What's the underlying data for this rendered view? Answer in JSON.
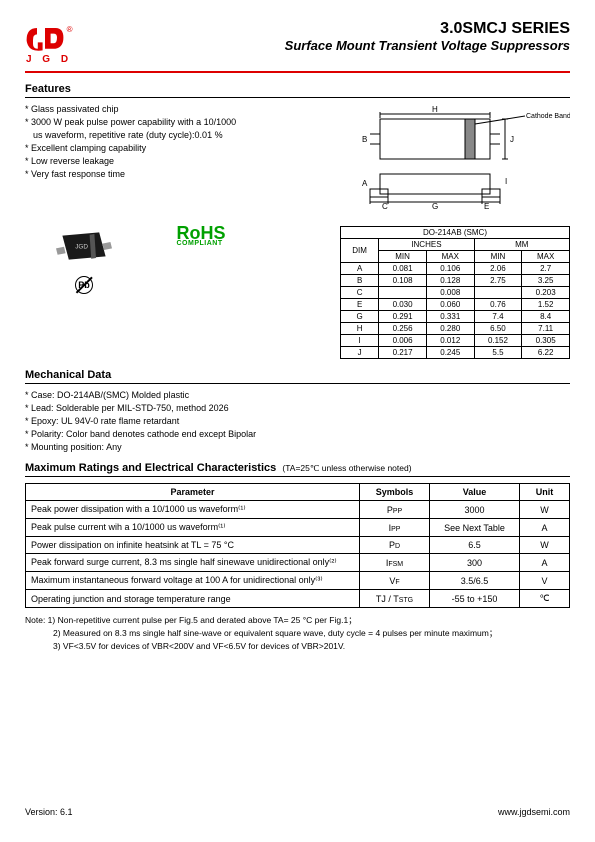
{
  "logo_text": "J G D",
  "title": "3.0SMCJ SERIES",
  "subtitle": "Surface Mount Transient Voltage Suppressors",
  "features_hdr": "Features",
  "features": [
    "Glass passivated chip",
    "3000 W peak pulse power capability with a 10/1000",
    "   us waveform, repetitive rate (duty cycle):0.01 %",
    "Excellent clamping capability",
    "Low reverse leakage",
    "Very fast response time"
  ],
  "rohs": "RoHS",
  "rohs_sub": "COMPLIANT",
  "pb": "Pb",
  "cathode_label": "Cathode Band",
  "dim_hdr": "DO-214AB (SMC)",
  "dim_cols": [
    "DIM",
    "INCHES",
    "MM"
  ],
  "dim_subcols": [
    "MIN",
    "MAX",
    "MIN",
    "MAX"
  ],
  "dim_rows": [
    [
      "A",
      "0.081",
      "0.106",
      "2.06",
      "2.7"
    ],
    [
      "B",
      "0.108",
      "0.128",
      "2.75",
      "3.25"
    ],
    [
      "C",
      "",
      "0.008",
      "",
      "0.203"
    ],
    [
      "E",
      "0.030",
      "0.060",
      "0.76",
      "1.52"
    ],
    [
      "G",
      "0.291",
      "0.331",
      "7.4",
      "8.4"
    ],
    [
      "H",
      "0.256",
      "0.280",
      "6.50",
      "7.11"
    ],
    [
      "I",
      "0.006",
      "0.012",
      "0.152",
      "0.305"
    ],
    [
      "J",
      "0.217",
      "0.245",
      "5.5",
      "6.22"
    ]
  ],
  "mech_hdr": "Mechanical Data",
  "mech": [
    "Case: DO-214AB/(SMC) Molded plastic",
    "Lead: Solderable per MIL-STD-750, method 2026",
    "Epoxy: UL 94V-0 rate flame retardant",
    "Polarity: Color band denotes cathode end except Bipolar",
    "Mounting position: Any"
  ],
  "ratings_hdr": "Maximum Ratings and Electrical Characteristics",
  "ratings_note": "(TA=25℃ unless otherwise noted)",
  "ratings_cols": [
    "Parameter",
    "Symbols",
    "Value",
    "Unit"
  ],
  "ratings_rows": [
    {
      "p": "Peak power dissipation with a 10/1000 us waveform⁽¹⁾",
      "s": "P",
      "ss": "PP",
      "v": "3000",
      "u": "W"
    },
    {
      "p": "Peak pulse current wih a 10/1000 us waveform⁽¹⁾",
      "s": "I",
      "ss": "PP",
      "v": "See Next Table",
      "u": "A"
    },
    {
      "p": "Power dissipation on infinite heatsink at TL = 75 °C",
      "s": "P",
      "ss": "D",
      "v": "6.5",
      "u": "W"
    },
    {
      "p": "Peak forward surge current, 8.3 ms single half sinewave unidirectional only⁽²⁾",
      "s": "I",
      "ss": "FSM",
      "v": "300",
      "u": "A"
    },
    {
      "p": "Maximum instantaneous forward voltage at 100 A for unidirectional only⁽³⁾",
      "s": "V",
      "ss": "F",
      "v": "3.5/6.5",
      "u": "V"
    },
    {
      "p": "Operating junction and storage temperature range",
      "s": "TJ / T",
      "ss": "STG",
      "v": "-55 to +150",
      "u": "℃"
    }
  ],
  "notes_lead": "Note: 1) Non-repetitive current pulse per Fig.5 and derated above TA= 25 °C per Fig.1；",
  "notes_2": "2) Measured on 8.3 ms single half sine-wave or equivalent square wave, duty cycle = 4 pulses per minute maximum；",
  "notes_3": "3) VF<3.5V for devices of VBR<200V and VF<6.5V for devices of VBR>201V.",
  "version": "Version: 6.1",
  "url": "www.jgdsemi.com"
}
